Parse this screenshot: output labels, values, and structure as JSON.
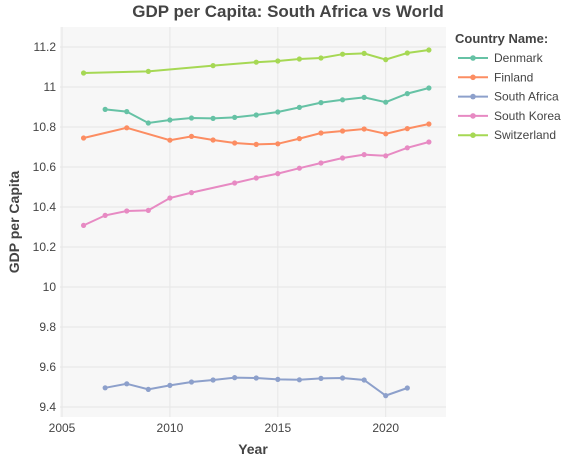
{
  "chart_data": {
    "type": "line",
    "title": "GDP per Capita: South Africa vs World",
    "xlabel": "Year",
    "ylabel": "GDP per Capita",
    "xlim": [
      2005,
      2022.7
    ],
    "ylim": [
      9.4,
      11.3
    ],
    "xticks": [
      2005,
      2010,
      2015,
      2020
    ],
    "yticks": [
      9.4,
      9.6,
      9.8,
      10,
      10.2,
      10.4,
      10.6,
      10.8,
      11,
      11.2
    ],
    "grid": true,
    "legend": {
      "title": "Country Name:",
      "placement": "right"
    },
    "series": [
      {
        "name": "Denmark",
        "color": "#66c2a5",
        "x": [
          2007,
          2008,
          2009,
          2010,
          2011,
          2012,
          2013,
          2014,
          2015,
          2016,
          2017,
          2018,
          2019,
          2020,
          2021,
          2022
        ],
        "y": [
          10.888,
          10.877,
          10.82,
          10.835,
          10.845,
          10.843,
          10.848,
          10.86,
          10.875,
          10.898,
          10.922,
          10.936,
          10.948,
          10.924,
          10.967,
          10.995
        ]
      },
      {
        "name": "Finland",
        "color": "#fc8d62",
        "x": [
          2006,
          2008,
          2010,
          2011,
          2012,
          2013,
          2014,
          2015,
          2016,
          2017,
          2018,
          2019,
          2020,
          2021,
          2022
        ],
        "y": [
          10.745,
          10.796,
          10.734,
          10.753,
          10.735,
          10.72,
          10.713,
          10.716,
          10.742,
          10.77,
          10.78,
          10.79,
          10.766,
          10.792,
          10.815
        ]
      },
      {
        "name": "South Africa",
        "color": "#8da0cb",
        "x": [
          2007,
          2008,
          2009,
          2010,
          2011,
          2012,
          2013,
          2014,
          2015,
          2016,
          2017,
          2018,
          2019,
          2020,
          2021
        ],
        "y": [
          9.496,
          9.516,
          9.488,
          9.508,
          9.525,
          9.535,
          9.547,
          9.545,
          9.538,
          9.536,
          9.543,
          9.545,
          9.535,
          9.457,
          9.495
        ]
      },
      {
        "name": "South Korea",
        "color": "#e78ac3",
        "x": [
          2006,
          2007,
          2008,
          2009,
          2010,
          2011,
          2013,
          2014,
          2015,
          2016,
          2017,
          2018,
          2019,
          2020,
          2021,
          2022
        ],
        "y": [
          10.308,
          10.358,
          10.38,
          10.383,
          10.445,
          10.472,
          10.52,
          10.545,
          10.567,
          10.594,
          10.62,
          10.645,
          10.662,
          10.656,
          10.696,
          10.725
        ]
      },
      {
        "name": "Switzerland",
        "color": "#a6d854",
        "x": [
          2006,
          2009,
          2012,
          2014,
          2015,
          2016,
          2017,
          2018,
          2019,
          2020,
          2021,
          2022
        ],
        "y": [
          11.07,
          11.078,
          11.107,
          11.124,
          11.13,
          11.14,
          11.145,
          11.164,
          11.168,
          11.137,
          11.17,
          11.185
        ]
      }
    ]
  }
}
